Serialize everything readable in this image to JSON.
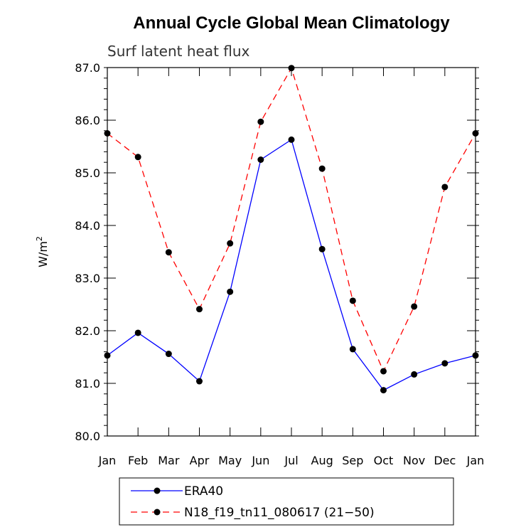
{
  "chart_data": {
    "type": "line",
    "title": "Annual Cycle Global Mean Climatology",
    "subtitle": "Surf latent heat flux",
    "ylabel": "W/m",
    "ylabel_sup": "2",
    "xlabel": "",
    "categories": [
      "Jan",
      "Feb",
      "Mar",
      "Apr",
      "May",
      "Jun",
      "Jul",
      "Aug",
      "Sep",
      "Oct",
      "Nov",
      "Dec",
      "Jan"
    ],
    "ylim": [
      80.0,
      87.0
    ],
    "yticks": [
      80.0,
      81.0,
      82.0,
      83.0,
      84.0,
      85.0,
      86.0,
      87.0
    ],
    "ytick_labels": [
      "80.0",
      "81.0",
      "82.0",
      "83.0",
      "84.0",
      "85.0",
      "86.0",
      "87.0"
    ],
    "legend_position": "bottom-left, below plot",
    "series": [
      {
        "name": "ERA40",
        "color": "#0000ff",
        "dash": "solid",
        "marker": "filled-circle",
        "values": [
          81.53,
          81.96,
          81.56,
          81.04,
          82.74,
          85.25,
          85.63,
          83.55,
          81.65,
          80.87,
          81.17,
          81.38,
          81.53
        ]
      },
      {
        "name": "N18_f19_tn11_080617 (21−50)",
        "color": "#ff0000",
        "dash": "dashed",
        "marker": "filled-circle",
        "values": [
          85.75,
          85.3,
          83.49,
          82.41,
          83.66,
          85.97,
          86.99,
          85.08,
          82.57,
          81.23,
          82.46,
          84.73,
          85.75
        ]
      }
    ]
  }
}
